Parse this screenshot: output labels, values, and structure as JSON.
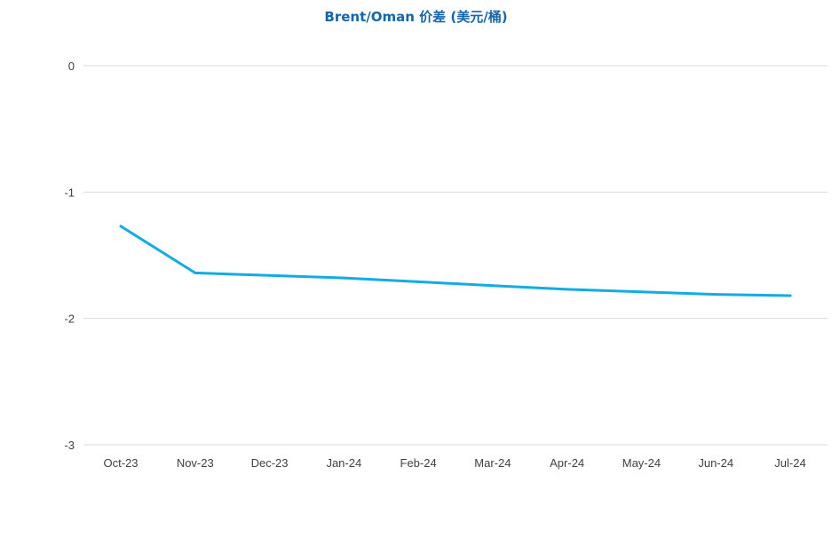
{
  "colors": {
    "title": "#1565ad",
    "line": "#12ace5",
    "grid": "#d9d9d9",
    "tick_text": "#404040"
  },
  "chart_data": {
    "type": "line",
    "title": "Brent/Oman 价差 (美元/桶)",
    "xlabel": "",
    "ylabel": "",
    "categories": [
      "Oct-23",
      "Nov-23",
      "Dec-23",
      "Jan-24",
      "Feb-24",
      "Mar-24",
      "Apr-24",
      "May-24",
      "Jun-24",
      "Jul-24"
    ],
    "series": [
      {
        "values": [
          -1.27,
          -1.64,
          -1.66,
          -1.68,
          -1.71,
          -1.74,
          -1.77,
          -1.79,
          -1.81,
          -1.82
        ]
      }
    ],
    "ylim": [
      -3,
      0
    ],
    "yticks": [
      0,
      -1,
      -2,
      -3
    ],
    "grid": true,
    "legend": "none"
  }
}
